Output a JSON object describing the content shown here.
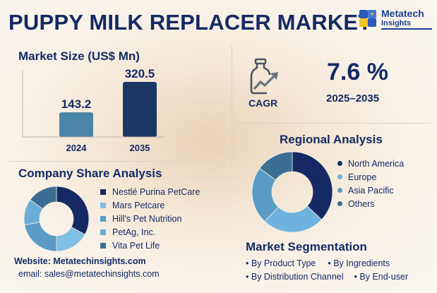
{
  "title": "PUPPY MILK REPLACER MARKET",
  "logo": {
    "name": "Metatech",
    "sub": "Insights"
  },
  "market_size": {
    "heading": "Market Size (US$ Mn)"
  },
  "cagr": {
    "label": "CAGR",
    "value": "7.6 %",
    "period": "2025–2035",
    "icon": "bottle-growth-icon"
  },
  "regional": {
    "heading": "Regional Analysis"
  },
  "company": {
    "heading": "Company Share Analysis"
  },
  "contact": {
    "website": "Website: Metatechinsights.com",
    "email": "email: sales@metatechinsights.com"
  },
  "segmentation": {
    "heading": "Market Segmentation",
    "items": [
      "By Product Type",
      "By Ingredients",
      "By Distribution Channel",
      "By End-user"
    ]
  },
  "colors": {
    "navy": "#152a63",
    "dark_teal": "#204a6e",
    "steel": "#4a85a8",
    "sky": "#6eb3dd",
    "light_sky": "#8cc8ea"
  },
  "chart_data": [
    {
      "type": "bar",
      "categories": [
        "2024",
        "2035"
      ],
      "values": [
        143.2,
        320.5
      ],
      "labels": [
        "143.2",
        "320.5"
      ],
      "colors": [
        "#4a85a8",
        "#1b3763"
      ]
    },
    {
      "type": "pie",
      "donut": true,
      "legend": [
        "North America",
        "Europe",
        "Asia Pacific",
        "Others"
      ],
      "values": [
        37,
        25,
        23,
        15
      ],
      "colors": [
        "#152a63",
        "#6eb3dd",
        "#5a9cc6",
        "#3c6e93"
      ]
    },
    {
      "type": "pie",
      "donut": true,
      "legend": [
        "Nestlé Purina PetCare",
        "Mars Petcare",
        "Hill’s Pet Nutrition",
        "PetAg, Inc.",
        "Vita Pet Life"
      ],
      "values": [
        33,
        17,
        22,
        13,
        15
      ],
      "colors": [
        "#152a63",
        "#7fbfe3",
        "#5a9cc6",
        "#6aaed6",
        "#3c6e93"
      ]
    }
  ]
}
